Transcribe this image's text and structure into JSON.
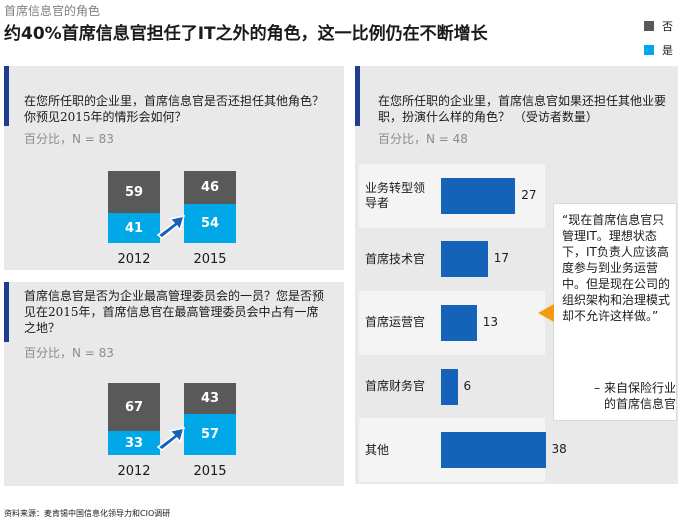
{
  "header": {
    "subtitle": "首席信息官的角色",
    "title": "约40%首席信息官担任了IT之外的角色，这一比例仍在不断增长"
  },
  "legend": {
    "no": "否",
    "yes": "是",
    "colors": {
      "no": "#595959",
      "yes": "#00a8e8"
    }
  },
  "panel_top_left": {
    "question": "在您所任职的企业里，首席信息官是否还担任其他角色？ 你预见2015年的情形会如何？",
    "meta": "百分比，N = 83"
  },
  "panel_bottom_left": {
    "question": "首席信息官是否为企业最高管理委员会的一员？您是否预见在2015年，首席信息官在最高管理委员会中占有一席之地？",
    "meta": "百分比，N = 83"
  },
  "panel_right": {
    "question": "在您所任职的企业里，首席信息官如果还担任其他业要职，扮演什么样的角色？ （受访者数量）",
    "meta": "百分比，N = 48"
  },
  "quote": {
    "text": "“现在首席信息官只管理IT。理想状态下，IT负责人应该高度参与到业务运营中。但是现在公司的组织架构和治理模式却不允许这样做。”",
    "attribution": "– 来自保险行业的首席信息官"
  },
  "source": "资料来源：麦肯锡中国信息化领导力和CIO调研",
  "chart_data": [
    {
      "type": "bar",
      "stacked": true,
      "categories": [
        "2012",
        "2015"
      ],
      "series": [
        {
          "name": "否",
          "values": [
            59,
            46
          ]
        },
        {
          "name": "是",
          "values": [
            41,
            54
          ]
        }
      ],
      "ylim": [
        0,
        100
      ]
    },
    {
      "type": "bar",
      "stacked": true,
      "categories": [
        "2012",
        "2015"
      ],
      "series": [
        {
          "name": "否",
          "values": [
            67,
            43
          ]
        },
        {
          "name": "是",
          "values": [
            33,
            57
          ]
        }
      ],
      "ylim": [
        0,
        100
      ]
    },
    {
      "type": "bar",
      "orientation": "horizontal",
      "categories": [
        "业务转型领导者",
        "首席技术官",
        "首席运营官",
        "首席财务官",
        "其他"
      ],
      "values": [
        27,
        17,
        13,
        6,
        38
      ],
      "xlim": [
        0,
        40
      ]
    }
  ]
}
